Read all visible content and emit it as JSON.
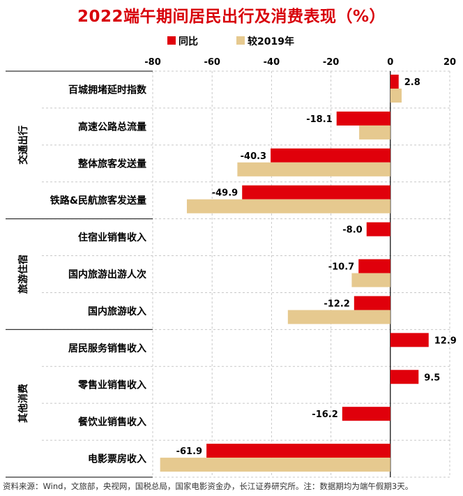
{
  "title": "2022端午期间居民出行及消费表现（%）",
  "source": "资料来源：Wind，文旅部，央视网，国税总局，国家电影资金办，长江证券研究所。注：数据期均为端午假期3天。",
  "chart_data": {
    "type": "bar",
    "orientation": "horizontal",
    "title": "2022端午期间居民出行及消费表现（%）",
    "xlim": [
      -80,
      20
    ],
    "xticks": [
      -80,
      -60,
      -40,
      -20,
      0,
      20
    ],
    "legend": {
      "position": "top",
      "entries": [
        "同比",
        "较2019年"
      ]
    },
    "colors": {
      "同比": "#e0000b",
      "较2019年": "#e6c98f"
    },
    "groups": [
      {
        "name": "交通出行",
        "categories": [
          "百城拥堵延时指数",
          "高速公路总流量",
          "整体旅客发送量",
          "铁路&民航旅客发送量"
        ]
      },
      {
        "name": "旅游住宿",
        "categories": [
          "住宿业销售收入",
          "国内旅游出游人次",
          "国内旅游收入"
        ]
      },
      {
        "name": "其他消费",
        "categories": [
          "居民服务销售收入",
          "零售业销售收入",
          "餐饮业销售收入",
          "电影票房收入"
        ]
      }
    ],
    "categories": [
      "百城拥堵延时指数",
      "高速公路总流量",
      "整体旅客发送量",
      "铁路&民航旅客发送量",
      "住宿业销售收入",
      "国内旅游出游人次",
      "国内旅游收入",
      "居民服务销售收入",
      "零售业销售收入",
      "餐饮业销售收入",
      "电影票房收入"
    ],
    "series": [
      {
        "name": "同比",
        "values": [
          2.8,
          -18.1,
          -40.3,
          -49.9,
          -8.0,
          -10.7,
          -12.2,
          12.9,
          9.5,
          -16.2,
          -61.9
        ]
      },
      {
        "name": "较2019年",
        "values": [
          3.8,
          -10.5,
          -51.5,
          -68.5,
          null,
          -13.0,
          -34.5,
          null,
          null,
          null,
          -77.5
        ]
      }
    ],
    "data_labels": [
      "2.8",
      "-18.1",
      "-40.3",
      "-49.9",
      "-8.0",
      "-10.7",
      "-12.2",
      "12.9",
      "9.5",
      "-16.2",
      "-61.9"
    ]
  }
}
